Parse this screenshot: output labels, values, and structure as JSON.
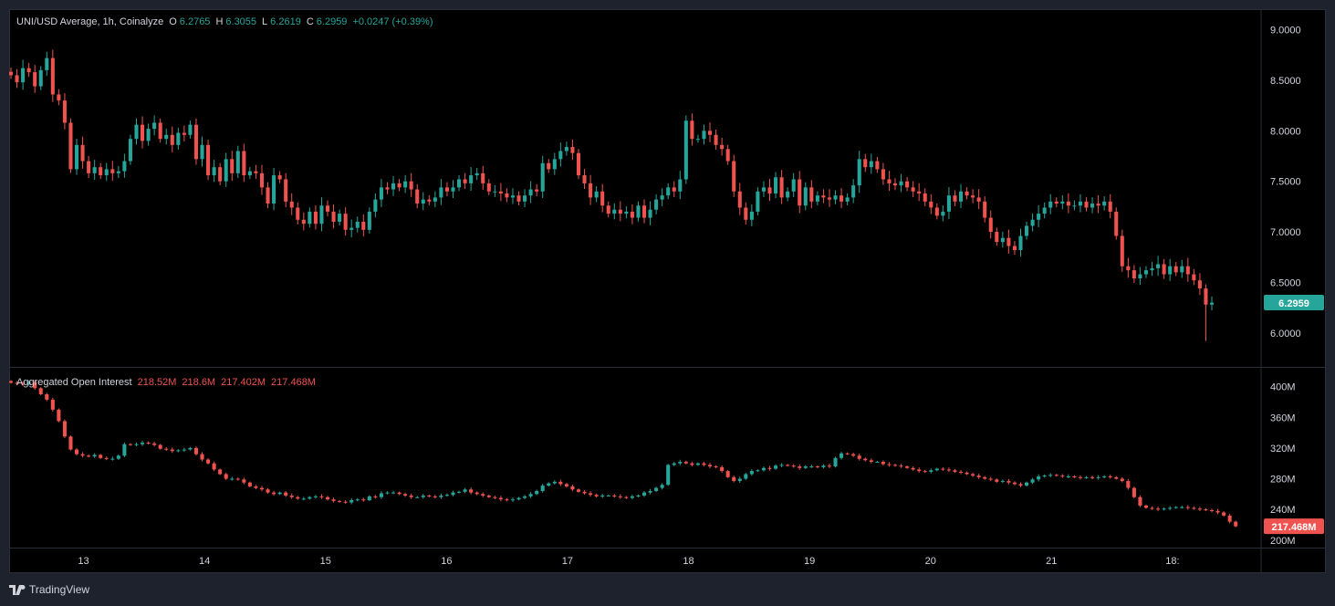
{
  "price_legend": {
    "symbol": "UNI/USD Average, 1h, Coinalyze",
    "o_label": "O",
    "o_value": "6.2765",
    "h_label": "H",
    "h_value": "6.3055",
    "l_label": "L",
    "l_value": "6.2619",
    "c_label": "C",
    "c_value": "6.2959",
    "change": "+0.0247 (+0.39%)"
  },
  "oi_legend": {
    "title": "Aggregated Open Interest",
    "values": [
      "218.52M",
      "218.6M",
      "217.402M",
      "217.468M"
    ]
  },
  "footer": {
    "brand": "TradingView"
  },
  "colors": {
    "up": "#26a69a",
    "down": "#ef5350",
    "background": "#000000",
    "text": "#d1d4dc",
    "grid": "#2a2e39"
  },
  "chart_data": [
    {
      "type": "candlestick",
      "name": "price",
      "ylim": [
        5.7,
        9.15
      ],
      "y_ticks": [
        "9.0000",
        "8.5000",
        "8.0000",
        "7.5000",
        "7.0000",
        "6.5000",
        "6.0000"
      ],
      "y_tick_values": [
        9.0,
        8.5,
        8.0,
        7.5,
        7.0,
        6.5,
        6.0
      ],
      "last_value": 6.2959,
      "last_label": "6.2959",
      "closes": [
        8.55,
        8.48,
        8.62,
        8.58,
        8.44,
        8.6,
        8.72,
        8.36,
        8.3,
        8.08,
        7.62,
        7.86,
        7.7,
        7.58,
        7.64,
        7.56,
        7.62,
        7.58,
        7.6,
        7.7,
        7.92,
        8.06,
        7.9,
        8.02,
        8.08,
        7.92,
        7.96,
        7.86,
        7.98,
        7.96,
        8.06,
        7.72,
        7.86,
        7.56,
        7.64,
        7.5,
        7.72,
        7.58,
        7.8,
        7.56,
        7.6,
        7.58,
        7.44,
        7.28,
        7.56,
        7.52,
        7.3,
        7.24,
        7.12,
        7.08,
        7.2,
        7.08,
        7.26,
        7.2,
        7.1,
        7.18,
        7.02,
        7.04,
        7.1,
        7.02,
        7.2,
        7.32,
        7.44,
        7.42,
        7.48,
        7.44,
        7.5,
        7.42,
        7.28,
        7.32,
        7.3,
        7.34,
        7.44,
        7.4,
        7.44,
        7.52,
        7.48,
        7.56,
        7.58,
        7.48,
        7.4,
        7.4,
        7.38,
        7.34,
        7.36,
        7.3,
        7.36,
        7.42,
        7.4,
        7.68,
        7.62,
        7.72,
        7.8,
        7.84,
        7.78,
        7.56,
        7.48,
        7.34,
        7.4,
        7.26,
        7.18,
        7.22,
        7.18,
        7.2,
        7.14,
        7.26,
        7.14,
        7.22,
        7.32,
        7.36,
        7.44,
        7.4,
        7.52,
        8.1,
        7.92,
        7.92,
        8.0,
        7.96,
        7.86,
        7.82,
        7.7,
        7.4,
        7.24,
        7.12,
        7.2,
        7.4,
        7.44,
        7.38,
        7.54,
        7.34,
        7.4,
        7.52,
        7.26,
        7.44,
        7.3,
        7.36,
        7.34,
        7.32,
        7.36,
        7.3,
        7.34,
        7.46,
        7.72,
        7.64,
        7.7,
        7.62,
        7.52,
        7.48,
        7.46,
        7.5,
        7.44,
        7.4,
        7.38,
        7.3,
        7.24,
        7.16,
        7.2,
        7.36,
        7.3,
        7.4,
        7.36,
        7.34,
        7.3,
        7.14,
        7.0,
        6.9,
        6.94,
        6.86,
        6.82,
        6.96,
        7.06,
        7.12,
        7.18,
        7.24,
        7.3,
        7.28,
        7.3,
        7.26,
        7.26,
        7.3,
        7.24,
        7.28,
        7.26,
        7.3,
        7.2,
        6.96,
        6.66,
        6.62,
        6.54,
        6.58,
        6.62,
        6.64,
        6.68,
        6.58,
        6.66,
        6.6,
        6.66,
        6.58,
        6.52,
        6.44,
        6.28,
        6.3
      ]
    },
    {
      "type": "candlestick",
      "name": "open_interest",
      "ylim": [
        195,
        415
      ],
      "y_ticks": [
        "400M",
        "360M",
        "320M",
        "280M",
        "240M",
        "200M"
      ],
      "y_tick_values": [
        400,
        360,
        320,
        280,
        240,
        200
      ],
      "last_value": 217.468,
      "last_label": "217.468M",
      "closes": [
        405,
        404,
        403,
        406,
        398,
        390,
        383,
        370,
        355,
        335,
        318,
        312,
        310,
        309,
        311,
        307,
        306,
        306,
        310,
        325,
        324,
        325,
        327,
        326,
        324,
        319,
        318,
        316,
        317,
        318,
        320,
        312,
        305,
        300,
        292,
        286,
        280,
        280,
        279,
        275,
        270,
        268,
        266,
        262,
        260,
        262,
        258,
        256,
        254,
        254,
        256,
        257,
        256,
        253,
        251,
        250,
        249,
        252,
        253,
        252,
        257,
        256,
        261,
        262,
        262,
        260,
        258,
        256,
        256,
        258,
        257,
        256,
        258,
        259,
        262,
        263,
        266,
        262,
        260,
        258,
        256,
        255,
        253,
        252,
        253,
        255,
        257,
        260,
        264,
        271,
        274,
        276,
        273,
        270,
        266,
        263,
        261,
        259,
        257,
        258,
        258,
        257,
        256,
        255,
        257,
        258,
        262,
        264,
        268,
        272,
        298,
        300,
        302,
        300,
        298,
        300,
        298,
        296,
        295,
        290,
        282,
        277,
        280,
        286,
        290,
        291,
        294,
        293,
        297,
        298,
        297,
        296,
        294,
        296,
        296,
        295,
        297,
        296,
        307,
        313,
        312,
        310,
        306,
        304,
        302,
        302,
        299,
        298,
        297,
        296,
        294,
        292,
        290,
        289,
        291,
        293,
        292,
        291,
        289,
        288,
        286,
        284,
        282,
        280,
        279,
        276,
        277,
        275,
        273,
        271,
        275,
        279,
        283,
        284,
        285,
        284,
        283,
        283,
        282,
        281,
        282,
        281,
        282,
        283,
        282,
        280,
        277,
        268,
        256,
        245,
        242,
        241,
        240,
        241,
        242,
        243,
        243,
        242,
        241,
        240,
        239,
        238,
        236,
        232,
        224,
        218
      ]
    }
  ],
  "x_axis": {
    "ticks": [
      "13",
      "14",
      "15",
      "16",
      "17",
      "18",
      "19",
      "20",
      "21",
      "18:"
    ],
    "tick_positions": [
      2.4,
      6.4,
      10.4,
      14.4,
      18.4,
      22.4,
      26.4,
      30.4,
      34.4,
      38.4
    ]
  }
}
